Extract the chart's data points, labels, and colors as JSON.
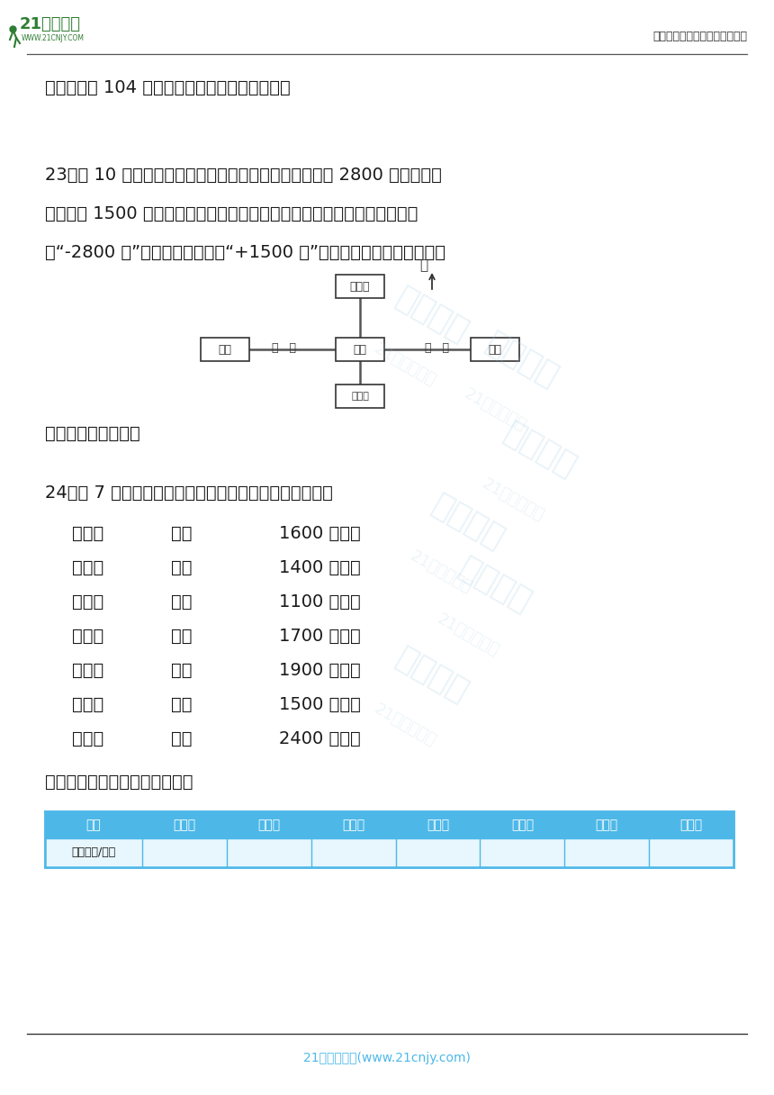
{
  "bg_color": "#ffffff",
  "header_line_color": "#555555",
  "footer_line_color": "#333333",
  "header_right_text": "中小学教育资源及组卷应用平台",
  "footer_text": "21世纪教育网(www.21cnjy.com)",
  "footer_text_color": "#4db8e8",
  "text_color": "#1a1a1a",
  "watermark_color": "#a0c8e0",
  "q22_text": "品的重量是 104 克，这件产品合格吗？为什么？",
  "q23_label": "23．（ 10 分）小东从学校出发，沿东西方向的大街走了 2800 米，沿南北",
  "q23_line2": "方向走了 1500 米，如果向东走用正数表示，向北走用负数表示。那么小东",
  "q23_line3": "走“-2800 米”到了什么地方？走“+1500 米”又到了什么地方？并在图中",
  "q23_footer": "填出相应的正负数。",
  "q24_label": "24．（ 7 分）下面是一个水果店一周内购销水果的情况。",
  "q24_data": [
    [
      "星期一",
      "收购",
      "1600 千克；"
    ],
    [
      "星期二",
      "收购",
      "1400 千克；"
    ],
    [
      "星期三",
      "卖出",
      "1100 千克；"
    ],
    [
      "星期四",
      "收购",
      "1700 千克；"
    ],
    [
      "星期五",
      "卖出",
      "1900 千克；"
    ],
    [
      "星期六",
      "收购",
      "1500 千克；"
    ],
    [
      "星期日",
      "卖出",
      "2400 千克。"
    ]
  ],
  "q24_table_note": "根据上边的数据完成下面的表。",
  "table_header": [
    "日期",
    "星期一",
    "星期二",
    "星期三",
    "星期四",
    "星期五",
    "星期六",
    "星期日"
  ],
  "table_row_label": "购销情况/千克",
  "table_border_color": "#4db8e8",
  "table_header_bg": "#4db8e8",
  "table_header_text_color": "#ffffff",
  "table_cell_bg": "#e8f6fd",
  "map_border_color": "#333333",
  "map_label_color": "#333333",
  "shaonian_label": "少年宫",
  "xuexiao_label": "学校",
  "chaoshi_label": "超市",
  "youju_label": "邮局",
  "dianyingyuan_label": "电影院",
  "bei_label": "北"
}
